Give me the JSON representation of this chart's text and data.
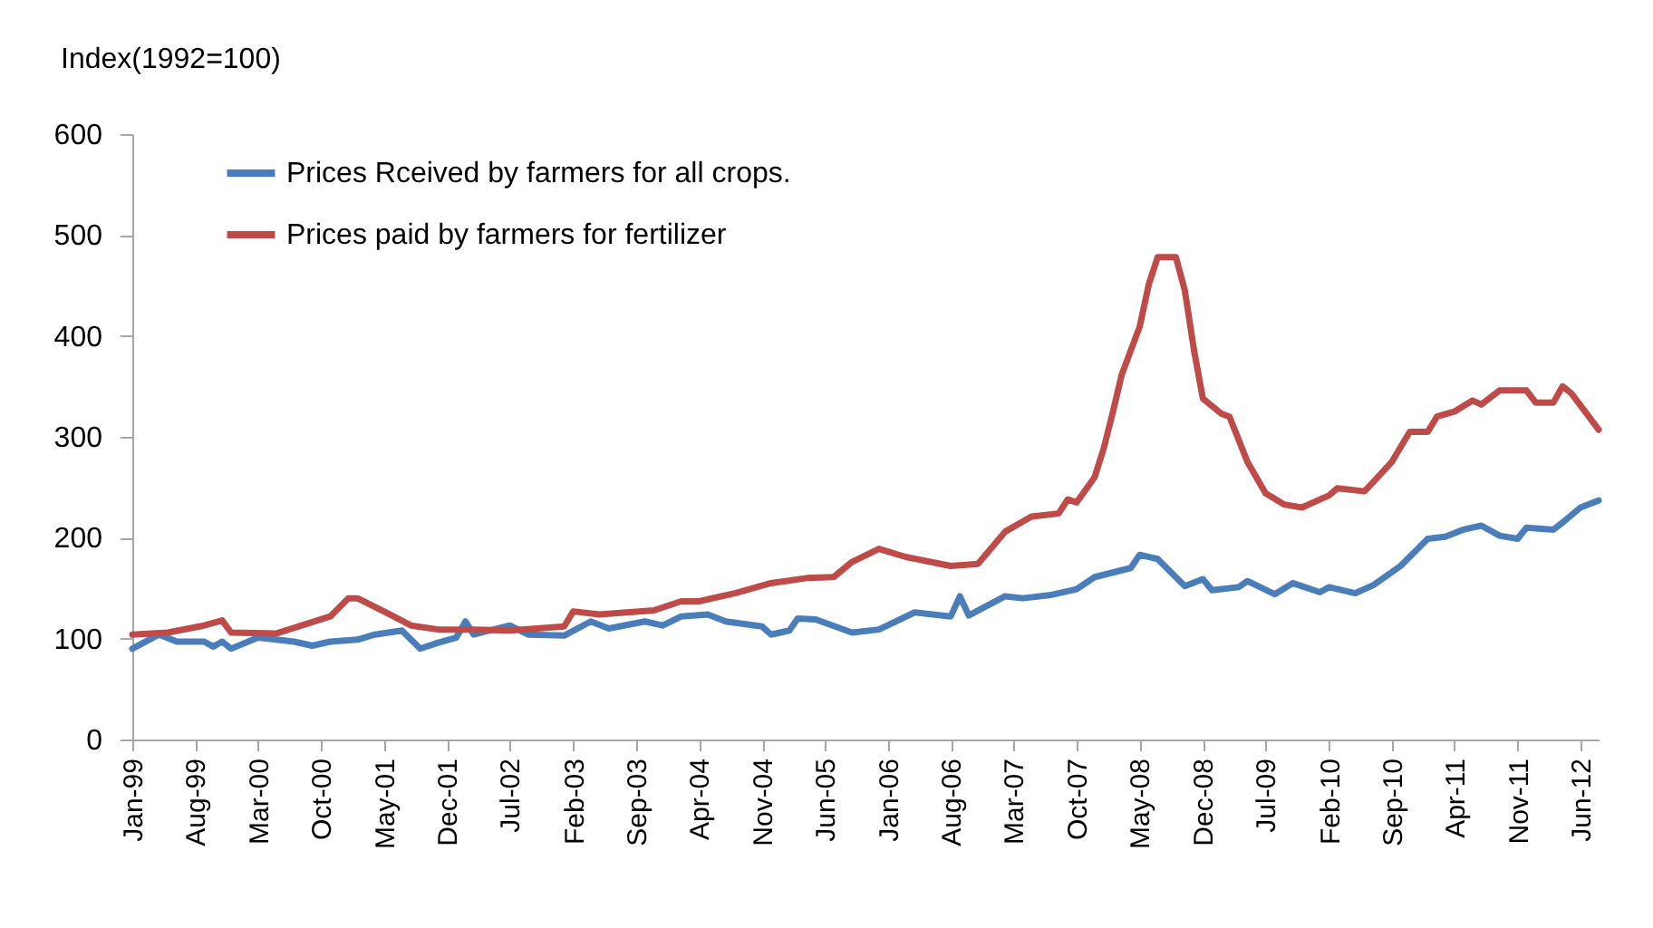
{
  "chart_data": {
    "type": "line",
    "ylabel": "Index(1992=100)",
    "ylim": [
      0,
      600
    ],
    "yticks": [
      0,
      100,
      200,
      300,
      400,
      500,
      600
    ],
    "xlim": [
      "1999-01",
      "2012-08"
    ],
    "xticks": [
      {
        "value": "1999-01",
        "label": "Jan-99"
      },
      {
        "value": "1999-08",
        "label": "Aug-99"
      },
      {
        "value": "2000-03",
        "label": "Mar-00"
      },
      {
        "value": "2000-10",
        "label": "Oct-00"
      },
      {
        "value": "2001-05",
        "label": "May-01"
      },
      {
        "value": "2001-12",
        "label": "Dec-01"
      },
      {
        "value": "2002-07",
        "label": "Jul-02"
      },
      {
        "value": "2003-02",
        "label": "Feb-03"
      },
      {
        "value": "2003-09",
        "label": "Sep-03"
      },
      {
        "value": "2004-04",
        "label": "Apr-04"
      },
      {
        "value": "2004-11",
        "label": "Nov-04"
      },
      {
        "value": "2005-06",
        "label": "Jun-05"
      },
      {
        "value": "2006-01",
        "label": "Jan-06"
      },
      {
        "value": "2006-08",
        "label": "Aug-06"
      },
      {
        "value": "2007-03",
        "label": "Mar-07"
      },
      {
        "value": "2007-10",
        "label": "Oct-07"
      },
      {
        "value": "2008-05",
        "label": "May-08"
      },
      {
        "value": "2008-12",
        "label": "Dec-08"
      },
      {
        "value": "2009-07",
        "label": "Jul-09"
      },
      {
        "value": "2010-02",
        "label": "Feb-10"
      },
      {
        "value": "2010-09",
        "label": "Sep-10"
      },
      {
        "value": "2011-04",
        "label": "Apr-11"
      },
      {
        "value": "2011-11",
        "label": "Nov-11"
      },
      {
        "value": "2012-06",
        "label": "Jun-12"
      }
    ],
    "grid": false,
    "legend": "top left",
    "marker": "none",
    "line_style": "solid",
    "series": [
      {
        "name": "Prices Rceived by farmers for all crops.",
        "color": "#4a7ebb",
        "x": [
          "1999-01",
          "1999-04",
          "1999-06",
          "1999-09",
          "1999-10",
          "1999-11",
          "1999-12",
          "2000-03",
          "2000-07",
          "2000-09",
          "2000-11",
          "2001-02",
          "2001-04",
          "2001-07",
          "2001-09",
          "2001-11",
          "2002-01",
          "2002-02",
          "2002-03",
          "2002-07",
          "2002-09",
          "2003-01",
          "2003-04",
          "2003-06",
          "2003-10",
          "2003-12",
          "2004-02",
          "2004-05",
          "2004-07",
          "2004-11",
          "2004-12",
          "2005-02",
          "2005-03",
          "2005-05",
          "2005-09",
          "2005-12",
          "2006-04",
          "2006-08",
          "2006-09",
          "2006-10",
          "2007-02",
          "2007-04",
          "2007-07",
          "2007-10",
          "2007-12",
          "2008-04",
          "2008-05",
          "2008-07",
          "2008-10",
          "2008-12",
          "2009-01",
          "2009-04",
          "2009-05",
          "2009-08",
          "2009-10",
          "2010-01",
          "2010-02",
          "2010-05",
          "2010-07",
          "2010-10",
          "2011-01",
          "2011-03",
          "2011-05",
          "2011-07",
          "2011-09",
          "2011-11",
          "2011-12",
          "2012-03",
          "2012-04",
          "2012-06",
          "2012-08"
        ],
        "values": [
          90,
          104,
          97,
          97,
          92,
          97,
          90,
          101,
          97,
          93,
          97,
          99,
          104,
          108,
          90,
          96,
          101,
          117,
          104,
          113,
          104,
          103,
          117,
          110,
          117,
          113,
          122,
          124,
          117,
          112,
          104,
          108,
          120,
          119,
          106,
          109,
          126,
          122,
          142,
          123,
          142,
          140,
          143,
          149,
          161,
          170,
          183,
          179,
          152,
          159,
          148,
          151,
          157,
          144,
          155,
          146,
          151,
          145,
          153,
          172,
          199,
          201,
          208,
          212,
          202,
          199,
          210,
          208,
          215,
          230,
          237
        ]
      },
      {
        "name": "Prices paid by farmers for fertilizer",
        "color": "#be4b48",
        "x": [
          "1999-01",
          "1999-05",
          "1999-09",
          "1999-11",
          "1999-12",
          "2000-05",
          "2000-11",
          "2001-01",
          "2001-02",
          "2001-05",
          "2001-08",
          "2001-11",
          "2002-03",
          "2002-07",
          "2003-01",
          "2003-02",
          "2003-05",
          "2003-11",
          "2004-02",
          "2004-04",
          "2004-08",
          "2004-12",
          "2005-04",
          "2005-07",
          "2005-09",
          "2005-12",
          "2006-03",
          "2006-08",
          "2006-11",
          "2007-02",
          "2007-05",
          "2007-08",
          "2007-09",
          "2007-10",
          "2007-12",
          "2008-01",
          "2008-02",
          "2008-03",
          "2008-05",
          "2008-06",
          "2008-07",
          "2008-09",
          "2008-10",
          "2008-11",
          "2008-12",
          "2009-02",
          "2009-03",
          "2009-05",
          "2009-07",
          "2009-09",
          "2009-11",
          "2010-02",
          "2010-03",
          "2010-06",
          "2010-09",
          "2010-11",
          "2011-01",
          "2011-02",
          "2011-04",
          "2011-06",
          "2011-07",
          "2011-09",
          "2011-12",
          "2012-01",
          "2012-03",
          "2012-04",
          "2012-05",
          "2012-08"
        ],
        "values": [
          104,
          106,
          113,
          118,
          106,
          105,
          122,
          140,
          140,
          127,
          113,
          109,
          109,
          108,
          112,
          127,
          124,
          128,
          137,
          137,
          145,
          155,
          160,
          161,
          176,
          189,
          181,
          172,
          174,
          206,
          221,
          224,
          238,
          235,
          260,
          289,
          325,
          361,
          409,
          451,
          478,
          478,
          445,
          386,
          338,
          323,
          320,
          275,
          244,
          233,
          230,
          242,
          249,
          246,
          275,
          305,
          305,
          320,
          325,
          336,
          332,
          346,
          346,
          334,
          334,
          350,
          343,
          307
        ]
      }
    ]
  }
}
